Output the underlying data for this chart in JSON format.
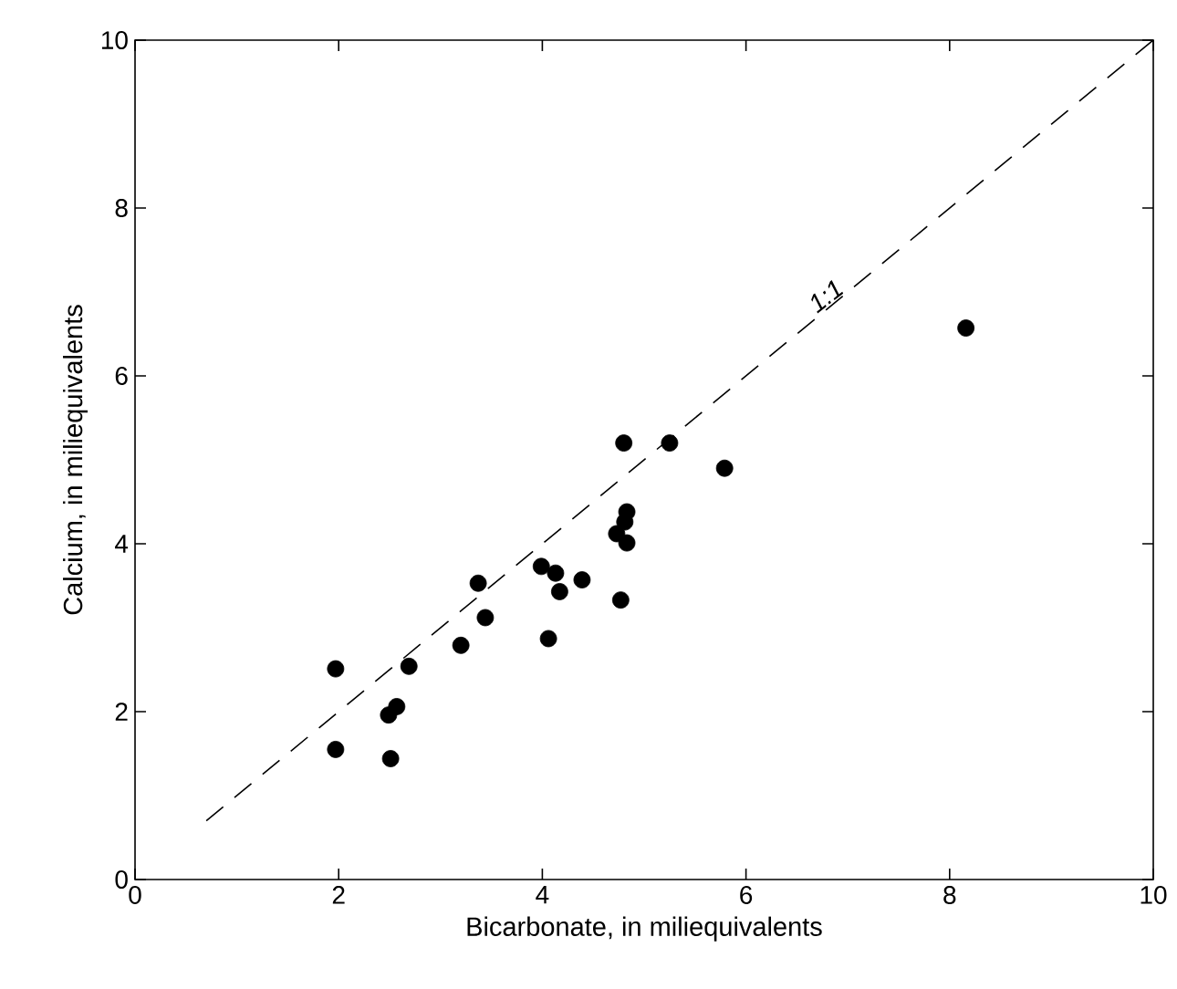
{
  "chart_data": {
    "type": "scatter",
    "xlabel": "Bicarbonate, in miliequivalents",
    "ylabel": "Calcium, in miliequivalents",
    "xlim": [
      0,
      10
    ],
    "ylim": [
      0,
      10
    ],
    "xticks": [
      0,
      2,
      4,
      6,
      8,
      10
    ],
    "yticks": [
      0,
      2,
      4,
      6,
      8,
      10
    ],
    "grid": false,
    "annotations": [
      {
        "text": "1:1",
        "x": 6.85,
        "y": 6.85
      }
    ],
    "series": [
      {
        "color": "#000000",
        "marker": "circle",
        "x": [
          8.16,
          5.79,
          5.25,
          4.8,
          4.83,
          4.81,
          4.73,
          4.83,
          3.37,
          3.99,
          4.13,
          4.17,
          4.39,
          4.77,
          3.44,
          3.2,
          4.06,
          2.69,
          1.97,
          2.57,
          2.49,
          1.97,
          2.51
        ],
        "values": [
          6.57,
          4.9,
          5.2,
          5.2,
          4.38,
          4.26,
          4.12,
          4.01,
          3.53,
          3.73,
          3.65,
          3.43,
          3.57,
          3.33,
          3.12,
          2.79,
          2.87,
          2.54,
          2.51,
          2.06,
          1.96,
          1.55,
          1.44
        ]
      },
      {
        "type": "line",
        "color": "#000000",
        "line_style": "dashed",
        "marker": "none",
        "x": [
          0.7,
          10
        ],
        "values": [
          0.7,
          10
        ]
      }
    ]
  }
}
